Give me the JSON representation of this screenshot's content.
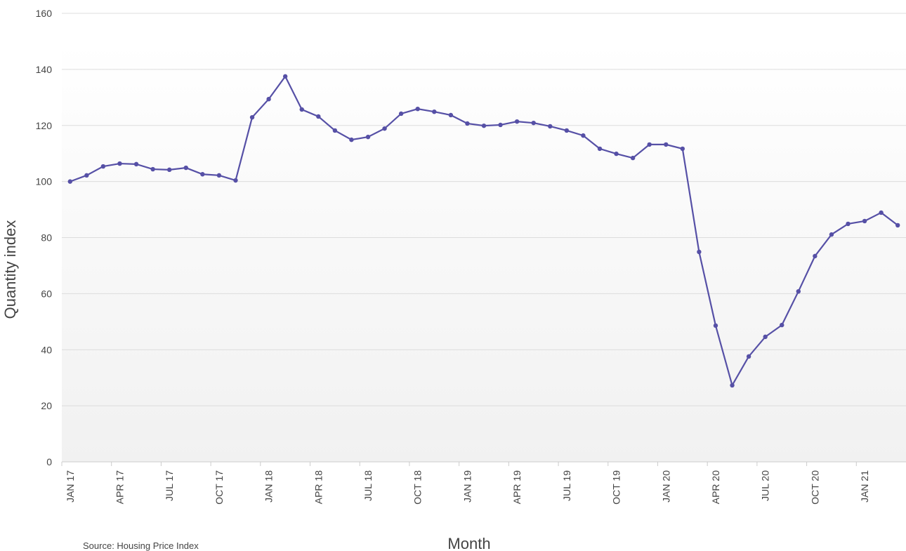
{
  "chart_data": {
    "type": "line",
    "x_label": "Month",
    "y_label": "Quantity index",
    "source": "Source: Housing Price Index",
    "categories": [
      "JAN 17",
      null,
      null,
      "APR 17",
      null,
      null,
      "JUL 17",
      null,
      null,
      "OCT 17",
      null,
      null,
      "JAN 18",
      null,
      null,
      "APR 18",
      null,
      null,
      "JUL 18",
      null,
      null,
      "OCT 18",
      null,
      null,
      "JAN 19",
      null,
      null,
      "APR 19",
      null,
      null,
      "JUL 19",
      null,
      null,
      "OCT 19",
      null,
      null,
      "JAN 20",
      null,
      null,
      "APR 20",
      null,
      null,
      "JUL 20",
      null,
      null,
      "OCT 20",
      null,
      null,
      "JAN 21",
      null,
      null
    ],
    "series": [
      {
        "name": "Quantity index",
        "color": "#5650a6",
        "values": [
          100,
          102.2,
          105.4,
          106.4,
          106.2,
          104.4,
          104.2,
          104.9,
          102.6,
          102.2,
          100.4,
          122.9,
          129.4,
          137.5,
          125.7,
          123.2,
          118.2,
          114.9,
          115.9,
          118.9,
          124.2,
          125.9,
          124.9,
          123.7,
          120.7,
          119.9,
          120.2,
          121.4,
          120.9,
          119.7,
          118.2,
          116.4,
          111.7,
          109.9,
          108.4,
          113.2,
          113.2,
          111.7,
          74.9,
          48.6,
          27.3,
          37.6,
          44.6,
          48.8,
          60.8,
          73.4,
          81.1,
          84.9,
          85.9,
          88.9,
          84.4
        ]
      }
    ],
    "ylim": [
      0,
      160
    ],
    "yticks": [
      0,
      20,
      40,
      60,
      80,
      100,
      120,
      140,
      160
    ],
    "grid": true
  }
}
